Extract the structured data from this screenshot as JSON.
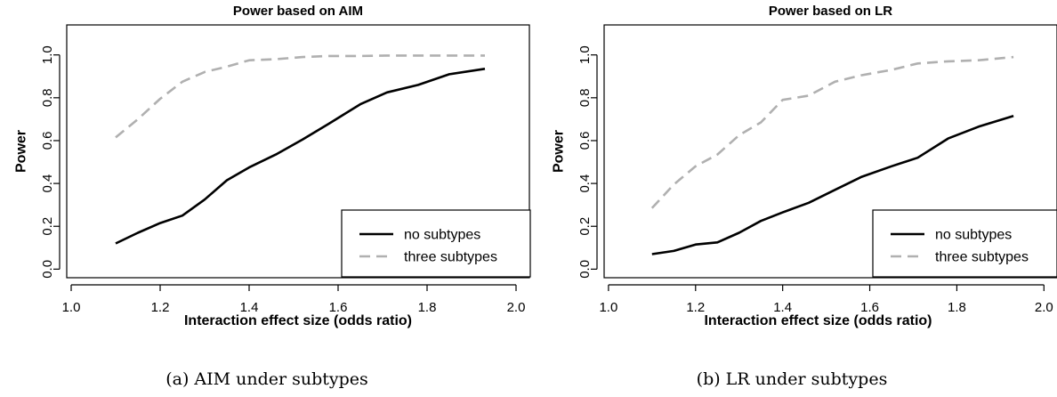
{
  "chart_data": [
    {
      "type": "line",
      "title": "Power based on AIM",
      "xlabel": "Interaction effect size (odds ratio)",
      "ylabel": "Power",
      "xlim": [
        0.99,
        2.03
      ],
      "ylim": [
        -0.04,
        1.14
      ],
      "xticks": [
        1.0,
        1.2,
        1.4,
        1.6,
        1.8,
        2.0
      ],
      "xtick_labels": [
        "1.0",
        "1.2",
        "1.4",
        "1.6",
        "1.8",
        "2.0"
      ],
      "yticks": [
        0.0,
        0.2,
        0.4,
        0.6,
        0.8,
        1.0
      ],
      "ytick_labels": [
        "0.0",
        "0.2",
        "0.4",
        "0.6",
        "0.8",
        "1.0"
      ],
      "grid": false,
      "legend_position": "bottom-right",
      "x": [
        1.1,
        1.15,
        1.2,
        1.25,
        1.3,
        1.35,
        1.4,
        1.46,
        1.52,
        1.58,
        1.65,
        1.71,
        1.78,
        1.85,
        1.93
      ],
      "series": [
        {
          "name": "no subtypes",
          "color": "#000000",
          "dash": "solid",
          "values": [
            0.12,
            0.17,
            0.215,
            0.25,
            0.325,
            0.415,
            0.475,
            0.535,
            0.605,
            0.68,
            0.77,
            0.825,
            0.86,
            0.91,
            0.935
          ]
        },
        {
          "name": "three subtypes",
          "color": "#b0b0b0",
          "dash": "dashed",
          "values": [
            0.615,
            0.7,
            0.795,
            0.875,
            0.92,
            0.945,
            0.975,
            0.98,
            0.99,
            0.995,
            0.995,
            0.997,
            0.997,
            0.997,
            0.997
          ]
        }
      ],
      "caption": "(a) AIM under subtypes"
    },
    {
      "type": "line",
      "title": "Power based on LR",
      "xlabel": "Interaction effect size (odds ratio)",
      "ylabel": "Power",
      "xlim": [
        0.99,
        2.03
      ],
      "ylim": [
        -0.04,
        1.14
      ],
      "xticks": [
        1.0,
        1.2,
        1.4,
        1.6,
        1.8,
        2.0
      ],
      "xtick_labels": [
        "1.0",
        "1.2",
        "1.4",
        "1.6",
        "1.8",
        "2.0"
      ],
      "yticks": [
        0.0,
        0.2,
        0.4,
        0.6,
        0.8,
        1.0
      ],
      "ytick_labels": [
        "0.0",
        "0.2",
        "0.4",
        "0.6",
        "0.8",
        "1.0"
      ],
      "grid": false,
      "legend_position": "bottom-right",
      "x": [
        1.1,
        1.15,
        1.2,
        1.25,
        1.3,
        1.35,
        1.4,
        1.46,
        1.52,
        1.58,
        1.65,
        1.71,
        1.78,
        1.85,
        1.93
      ],
      "series": [
        {
          "name": "no subtypes",
          "color": "#000000",
          "dash": "solid",
          "values": [
            0.07,
            0.085,
            0.115,
            0.125,
            0.17,
            0.225,
            0.265,
            0.31,
            0.37,
            0.43,
            0.48,
            0.52,
            0.61,
            0.665,
            0.715
          ]
        },
        {
          "name": "three subtypes",
          "color": "#b0b0b0",
          "dash": "dashed",
          "values": [
            0.285,
            0.395,
            0.48,
            0.535,
            0.625,
            0.685,
            0.79,
            0.81,
            0.875,
            0.905,
            0.93,
            0.96,
            0.97,
            0.975,
            0.99
          ]
        }
      ],
      "caption": "(b) LR under subtypes"
    }
  ]
}
